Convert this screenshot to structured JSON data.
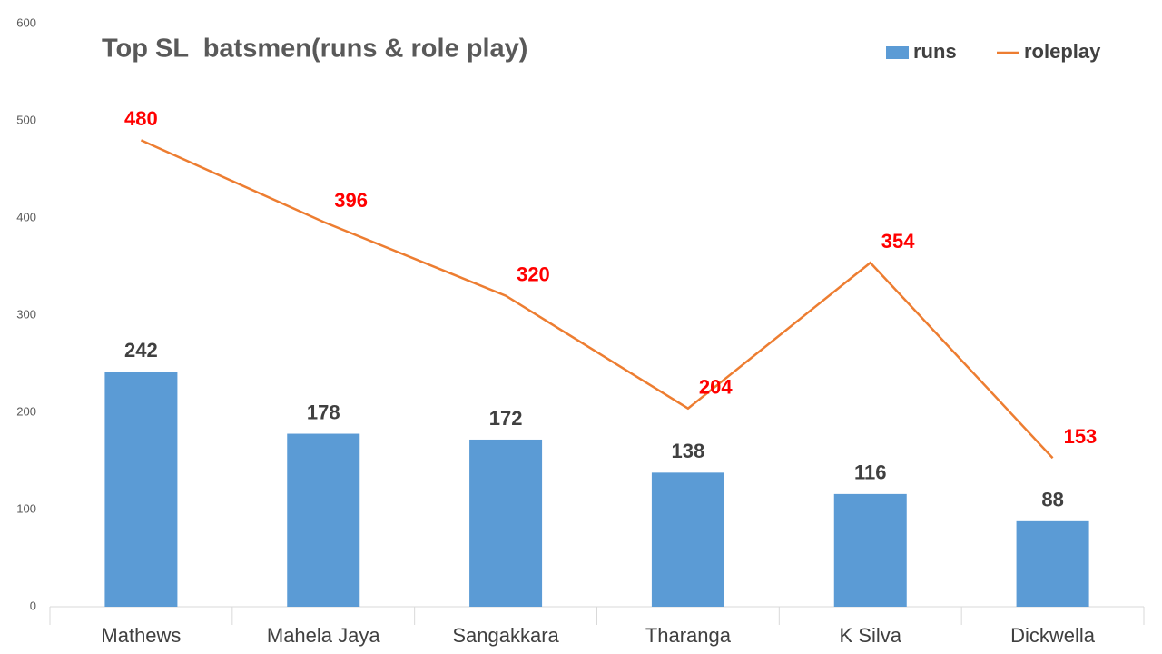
{
  "chart_data": {
    "type": "combo",
    "title": "Top SL  batsmen(runs & role play)",
    "categories": [
      "Mathews",
      "Mahela Jaya",
      "Sangakkara",
      "Tharanga",
      "K Silva",
      "Dickwella"
    ],
    "series": [
      {
        "name": "runs",
        "type": "bar",
        "color": "#5b9bd5",
        "values": [
          242,
          178,
          172,
          138,
          116,
          88
        ]
      },
      {
        "name": "roleplay",
        "type": "line",
        "color": "#ed7d31",
        "values": [
          480,
          396,
          320,
          204,
          354,
          153
        ]
      }
    ],
    "ylim": [
      0,
      600
    ],
    "yticks": [
      0,
      100,
      200,
      300,
      400,
      500,
      600
    ],
    "grid": false,
    "legend": "top-right"
  }
}
